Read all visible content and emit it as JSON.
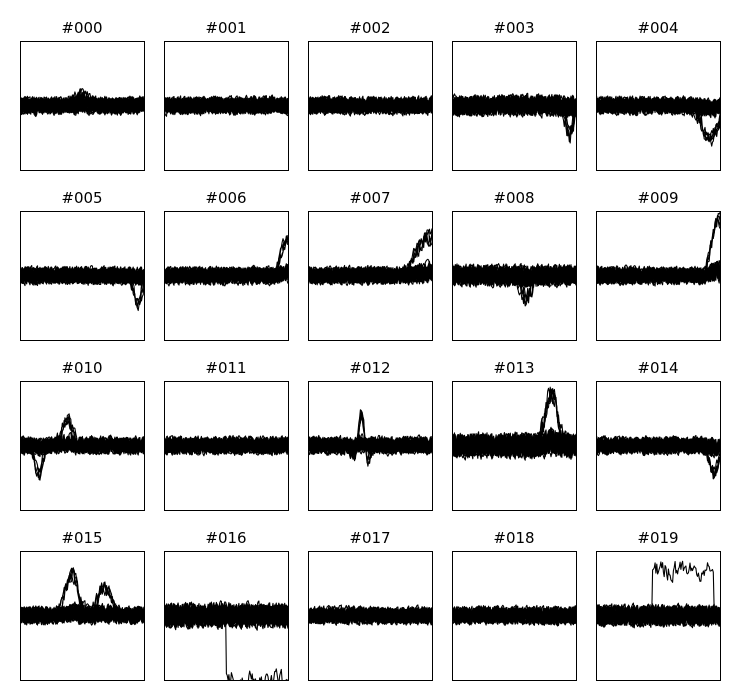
{
  "figure": {
    "background": "#ffffff",
    "line_color": "#000000",
    "rows": 4,
    "columns": 5
  },
  "chart_data": [
    {
      "type": "line",
      "title": "#000",
      "axes_visible": false,
      "traces_drawn": 30,
      "baseline": 0.0,
      "noise": 0.1,
      "ylim": [
        -1,
        1
      ],
      "features": [
        {
          "kind": "bump",
          "x": 0.5,
          "y": 0.15,
          "width": 0.05
        }
      ]
    },
    {
      "type": "line",
      "title": "#001",
      "axes_visible": false,
      "traces_drawn": 30,
      "baseline": 0.0,
      "noise": 0.1,
      "ylim": [
        -1,
        1
      ],
      "features": []
    },
    {
      "type": "line",
      "title": "#002",
      "axes_visible": false,
      "traces_drawn": 30,
      "baseline": 0.0,
      "noise": 0.1,
      "ylim": [
        -1,
        1
      ],
      "features": []
    },
    {
      "type": "line",
      "title": "#003",
      "axes_visible": false,
      "traces_drawn": 30,
      "baseline": 0.0,
      "noise": 0.12,
      "ylim": [
        -1,
        1
      ],
      "features": [
        {
          "kind": "dip",
          "x": 0.95,
          "y": -0.45,
          "width": 0.03
        }
      ]
    },
    {
      "type": "line",
      "title": "#004",
      "axes_visible": false,
      "traces_drawn": 30,
      "baseline": 0.0,
      "noise": 0.1,
      "ylim": [
        -1,
        1
      ],
      "features": [
        {
          "kind": "dip",
          "x": 0.92,
          "y": -0.55,
          "width": 0.06
        }
      ]
    },
    {
      "type": "line",
      "title": "#005",
      "axes_visible": false,
      "traces_drawn": 30,
      "baseline": 0.0,
      "noise": 0.1,
      "ylim": [
        -1,
        1
      ],
      "features": [
        {
          "kind": "dip",
          "x": 0.95,
          "y": -0.45,
          "width": 0.03
        }
      ]
    },
    {
      "type": "line",
      "title": "#006",
      "axes_visible": false,
      "traces_drawn": 30,
      "baseline": 0.0,
      "noise": 0.1,
      "ylim": [
        -1,
        1
      ],
      "features": [
        {
          "kind": "rise",
          "x": 0.98,
          "y": 0.55,
          "width": 0.03
        }
      ]
    },
    {
      "type": "line",
      "title": "#007",
      "axes_visible": false,
      "traces_drawn": 30,
      "baseline": 0.0,
      "noise": 0.1,
      "ylim": [
        -1,
        1
      ],
      "features": [
        {
          "kind": "rise",
          "x": 0.95,
          "y": 0.6,
          "width": 0.06
        }
      ]
    },
    {
      "type": "line",
      "title": "#008",
      "axes_visible": false,
      "traces_drawn": 30,
      "baseline": 0.0,
      "noise": 0.12,
      "ylim": [
        -1,
        1
      ],
      "features": [
        {
          "kind": "dip",
          "x": 0.6,
          "y": -0.35,
          "width": 0.04
        }
      ]
    },
    {
      "type": "line",
      "title": "#009",
      "axes_visible": false,
      "traces_drawn": 30,
      "baseline": 0.0,
      "noise": 0.1,
      "ylim": [
        -1,
        1
      ],
      "features": [
        {
          "kind": "rise",
          "x": 0.97,
          "y": 0.85,
          "width": 0.03
        }
      ]
    },
    {
      "type": "line",
      "title": "#010",
      "axes_visible": false,
      "traces_drawn": 30,
      "baseline": 0.0,
      "noise": 0.1,
      "ylim": [
        -1,
        1
      ],
      "features": [
        {
          "kind": "dip",
          "x": 0.15,
          "y": -0.45,
          "width": 0.03
        },
        {
          "kind": "bump",
          "x": 0.38,
          "y": 0.4,
          "width": 0.04
        }
      ]
    },
    {
      "type": "line",
      "title": "#011",
      "axes_visible": false,
      "traces_drawn": 30,
      "baseline": 0.0,
      "noise": 0.1,
      "ylim": [
        -1,
        1
      ],
      "features": []
    },
    {
      "type": "line",
      "title": "#012",
      "axes_visible": false,
      "traces_drawn": 30,
      "baseline": 0.0,
      "noise": 0.1,
      "ylim": [
        -1,
        1
      ],
      "features": [
        {
          "kind": "wavelet",
          "x": 0.43,
          "y": 0.45,
          "width": 0.05
        }
      ]
    },
    {
      "type": "line",
      "title": "#013",
      "axes_visible": false,
      "traces_drawn": 30,
      "baseline": 0.0,
      "noise": 0.14,
      "ylim": [
        -1,
        1
      ],
      "features": [
        {
          "kind": "bump",
          "x": 0.8,
          "y": 0.8,
          "width": 0.05
        }
      ]
    },
    {
      "type": "line",
      "title": "#014",
      "axes_visible": false,
      "traces_drawn": 30,
      "baseline": 0.0,
      "noise": 0.1,
      "ylim": [
        -1,
        1
      ],
      "features": [
        {
          "kind": "dip",
          "x": 0.95,
          "y": -0.45,
          "width": 0.03
        }
      ]
    },
    {
      "type": "line",
      "title": "#015",
      "axes_visible": false,
      "traces_drawn": 30,
      "baseline": 0.0,
      "noise": 0.1,
      "ylim": [
        -1,
        1
      ],
      "features": [
        {
          "kind": "bump",
          "x": 0.42,
          "y": 0.65,
          "width": 0.05
        },
        {
          "kind": "bump",
          "x": 0.68,
          "y": 0.45,
          "width": 0.05
        }
      ]
    },
    {
      "type": "line",
      "title": "#016",
      "axes_visible": false,
      "traces_drawn": 30,
      "baseline": 0.0,
      "noise": 0.14,
      "ylim": [
        -1,
        1
      ],
      "features": [
        {
          "kind": "step",
          "x": 0.5,
          "y": -1.0,
          "width": 0.03
        }
      ]
    },
    {
      "type": "line",
      "title": "#017",
      "axes_visible": false,
      "traces_drawn": 30,
      "baseline": 0.0,
      "noise": 0.1,
      "ylim": [
        -1,
        1
      ],
      "features": []
    },
    {
      "type": "line",
      "title": "#018",
      "axes_visible": false,
      "traces_drawn": 30,
      "baseline": 0.0,
      "noise": 0.1,
      "ylim": [
        -1,
        1
      ],
      "features": []
    },
    {
      "type": "line",
      "title": "#019",
      "axes_visible": false,
      "traces_drawn": 30,
      "baseline": 0.0,
      "noise": 0.12,
      "ylim": [
        -1,
        1
      ],
      "features": [
        {
          "kind": "plateau",
          "x": 0.45,
          "y": 0.7,
          "width": 0.5
        }
      ]
    }
  ]
}
